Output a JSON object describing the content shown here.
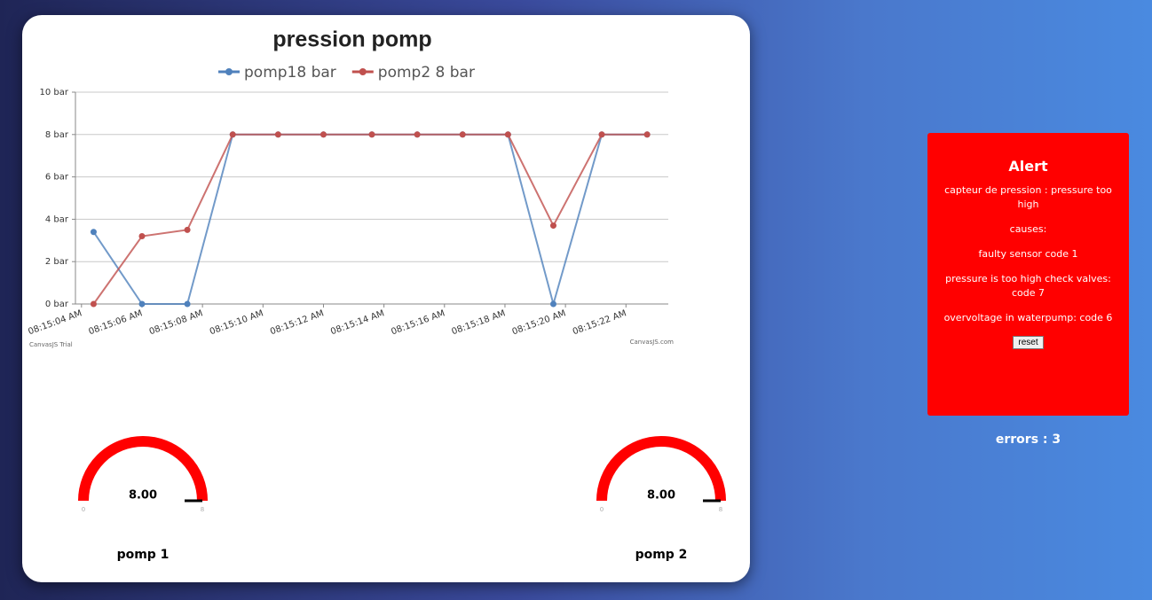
{
  "chart": {
    "type": "line",
    "title": "pression pomp",
    "x": [
      29704.4,
      29706.0,
      29707.5,
      29709.0,
      29710.5,
      29712.0,
      29713.6,
      29715.1,
      29716.6,
      29718.1,
      29719.6,
      29721.2,
      29722.7
    ],
    "series": [
      {
        "name": "pomp18 bar",
        "color": "#4f81bc",
        "values": [
          3.4,
          0,
          0,
          8,
          8,
          8,
          8,
          8,
          8,
          8,
          0,
          8,
          8
        ]
      },
      {
        "name": "pomp2 8 bar",
        "color": "#c0504e",
        "values": [
          0,
          3.2,
          3.5,
          8,
          8,
          8,
          8,
          8,
          8,
          8,
          3.7,
          8,
          8
        ]
      }
    ],
    "xlim": [
      29703.8,
      29723.4
    ],
    "xticks": [
      {
        "value": 29704,
        "label": "08:15:04 AM"
      },
      {
        "value": 29706,
        "label": "08:15:06 AM"
      },
      {
        "value": 29708,
        "label": "08:15:08 AM"
      },
      {
        "value": 29710,
        "label": "08:15:10 AM"
      },
      {
        "value": 29712,
        "label": "08:15:12 AM"
      },
      {
        "value": 29714,
        "label": "08:15:14 AM"
      },
      {
        "value": 29716,
        "label": "08:15:16 AM"
      },
      {
        "value": 29718,
        "label": "08:15:18 AM"
      },
      {
        "value": 29720,
        "label": "08:15:20 AM"
      },
      {
        "value": 29722,
        "label": "08:15:22 AM"
      }
    ],
    "ylim": [
      0,
      10
    ],
    "yticks": [
      {
        "value": 0,
        "label": "0 bar"
      },
      {
        "value": 2,
        "label": "2 bar"
      },
      {
        "value": 4,
        "label": "4 bar"
      },
      {
        "value": 6,
        "label": "6 bar"
      },
      {
        "value": 8,
        "label": "8 bar"
      },
      {
        "value": 10,
        "label": "10 bar"
      }
    ],
    "grid": true,
    "watermark_left": "CanvasJS Trial",
    "watermark_right": "CanvasJS.com"
  },
  "gauges": [
    {
      "label": "pomp 1",
      "value": 8,
      "value_label": "8.00",
      "min": 0,
      "max": 8,
      "color": "#ff0000"
    },
    {
      "label": "pomp 2",
      "value": 8,
      "value_label": "8.00",
      "min": 0,
      "max": 8,
      "color": "#ff0000"
    }
  ],
  "alert": {
    "title": "Alert",
    "lines": [
      "capteur de pression : pressure too high",
      "causes:",
      "faulty sensor code 1",
      "pressure is too high check valves: code 7",
      "overvoltage in waterpump: code 6"
    ],
    "button": "reset"
  },
  "errors": "errors : 3"
}
